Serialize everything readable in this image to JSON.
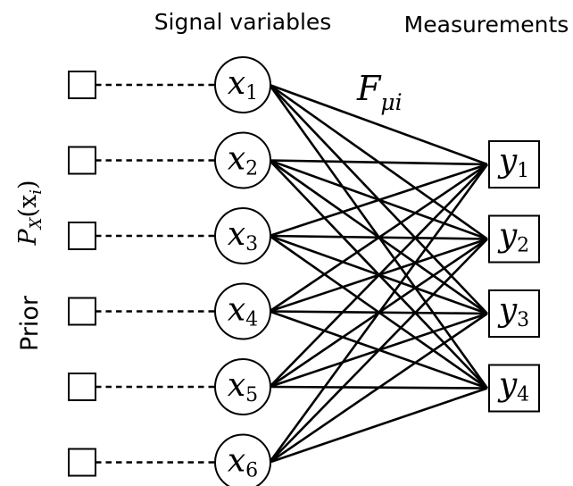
{
  "headers": {
    "signal": "Signal variables",
    "measurements": "Measurements"
  },
  "side": {
    "prior": "Prior",
    "prior_dist": {
      "symbol": "P",
      "subscript": "X",
      "argument": "(x",
      "arg_subscript": "i",
      "close": ")"
    }
  },
  "coupling": {
    "symbol": "F",
    "subscript": "μi"
  },
  "signal_nodes": [
    {
      "symbol": "x",
      "index": "1"
    },
    {
      "symbol": "x",
      "index": "2"
    },
    {
      "symbol": "x",
      "index": "3"
    },
    {
      "symbol": "x",
      "index": "4"
    },
    {
      "symbol": "x",
      "index": "5"
    },
    {
      "symbol": "x",
      "index": "6"
    }
  ],
  "measurement_nodes": [
    {
      "symbol": "y",
      "index": "1"
    },
    {
      "symbol": "y",
      "index": "2"
    },
    {
      "symbol": "y",
      "index": "3"
    },
    {
      "symbol": "y",
      "index": "4"
    }
  ],
  "connectivity": "complete-bipartite"
}
